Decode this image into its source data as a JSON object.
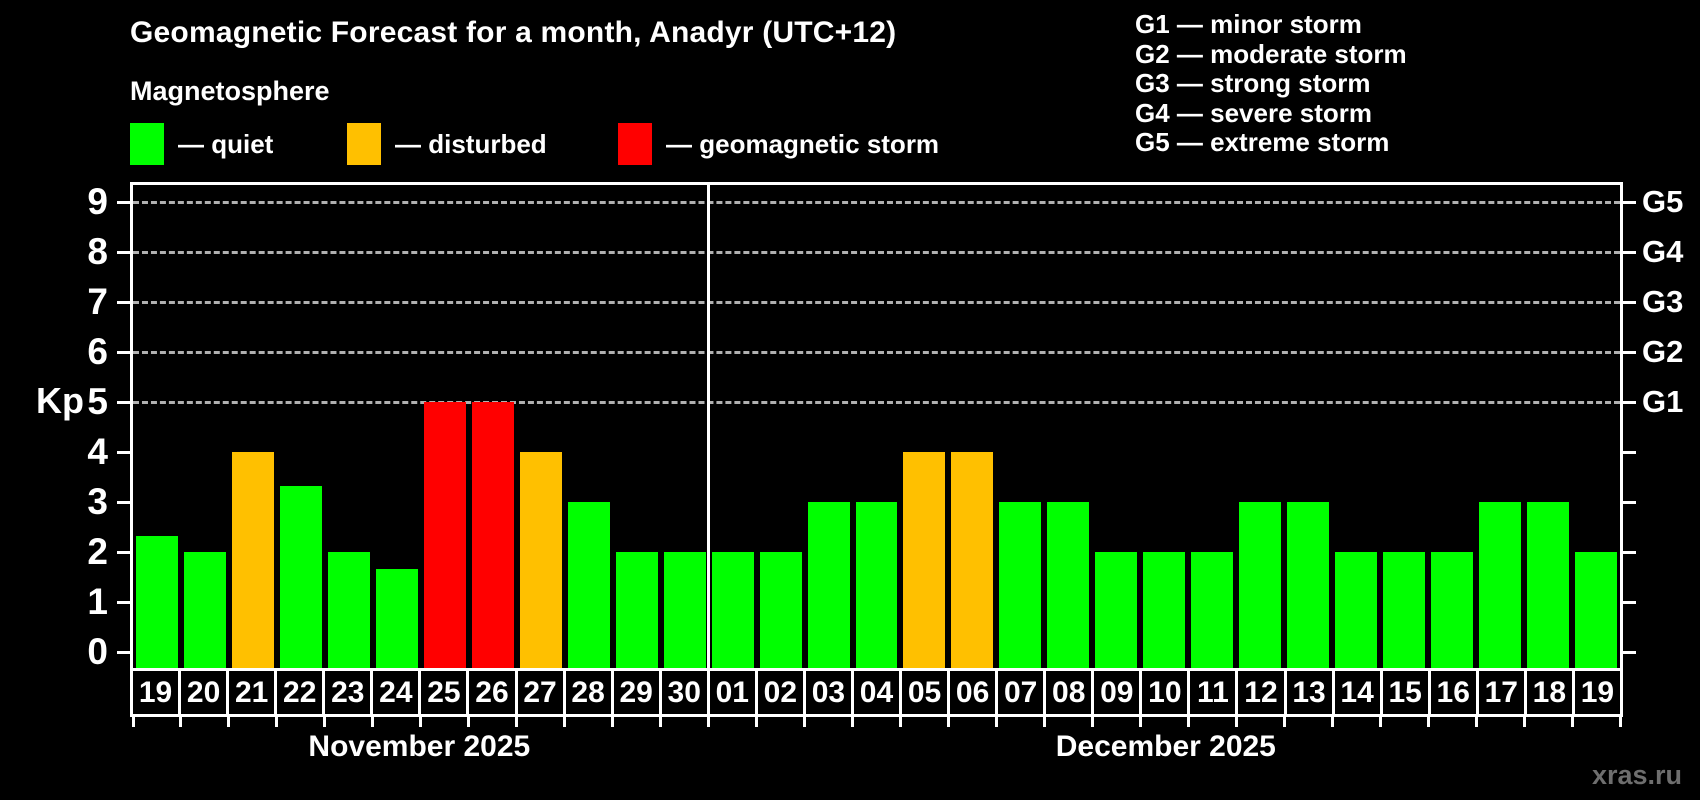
{
  "title": "Geomagnetic Forecast for a month, Anadyr (UTC+12)",
  "subtitle": "Magnetosphere",
  "legend": {
    "items": [
      {
        "key": "quiet",
        "label": "— quiet",
        "color": "#00ff00"
      },
      {
        "key": "disturbed",
        "label": "— disturbed",
        "color": "#ffc000"
      },
      {
        "key": "storm",
        "label": "— geomagnetic storm",
        "color": "#ff0000"
      }
    ]
  },
  "g_scale": {
    "items": [
      "G1 — minor storm",
      "G2 — moderate storm",
      "G3 — strong storm",
      "G4 — severe storm",
      "G5 — extreme storm"
    ]
  },
  "axis": {
    "y_label": "Kp",
    "y_ticks": [
      0,
      1,
      2,
      3,
      4,
      5,
      6,
      7,
      8,
      9
    ],
    "grid_levels": [
      5,
      6,
      7,
      8,
      9
    ],
    "right_labels": [
      {
        "kp": 5,
        "label": "G1"
      },
      {
        "kp": 6,
        "label": "G2"
      },
      {
        "kp": 7,
        "label": "G3"
      },
      {
        "kp": 8,
        "label": "G4"
      },
      {
        "kp": 9,
        "label": "G5"
      }
    ]
  },
  "months": [
    {
      "label": "November 2025",
      "days": 12
    },
    {
      "label": "December 2025",
      "days": 19
    }
  ],
  "watermark": "xras.ru",
  "colors": {
    "quiet": "#00ff00",
    "disturbed": "#ffc000",
    "storm": "#ff0000",
    "background": "#000000",
    "text": "#ffffff",
    "grid": "#b0b0b0",
    "watermark": "#6e6e6e"
  },
  "chart_data": {
    "type": "bar",
    "title": "Geomagnetic Forecast for a month, Anadyr (UTC+12)",
    "xlabel": "",
    "ylabel": "Kp",
    "ylim": [
      0,
      9
    ],
    "grid": "dashed horizontal at Kp 5-9 (G1-G5)",
    "month_split_index": 12,
    "categories": [
      "19",
      "20",
      "21",
      "22",
      "23",
      "24",
      "25",
      "26",
      "27",
      "28",
      "29",
      "30",
      "01",
      "02",
      "03",
      "04",
      "05",
      "06",
      "07",
      "08",
      "09",
      "10",
      "11",
      "12",
      "13",
      "14",
      "15",
      "16",
      "17",
      "18",
      "19"
    ],
    "values": [
      2.33,
      2,
      4,
      3.33,
      2,
      1.67,
      5,
      5,
      4,
      3,
      2,
      2,
      2,
      2,
      3,
      3,
      4,
      4,
      3,
      3,
      2,
      2,
      2,
      3,
      3,
      2,
      2,
      2,
      3,
      3,
      2
    ],
    "statuses": [
      "quiet",
      "quiet",
      "disturbed",
      "quiet",
      "quiet",
      "quiet",
      "storm",
      "storm",
      "disturbed",
      "quiet",
      "quiet",
      "quiet",
      "quiet",
      "quiet",
      "quiet",
      "quiet",
      "disturbed",
      "disturbed",
      "quiet",
      "quiet",
      "quiet",
      "quiet",
      "quiet",
      "quiet",
      "quiet",
      "quiet",
      "quiet",
      "quiet",
      "quiet",
      "quiet",
      "quiet"
    ]
  }
}
